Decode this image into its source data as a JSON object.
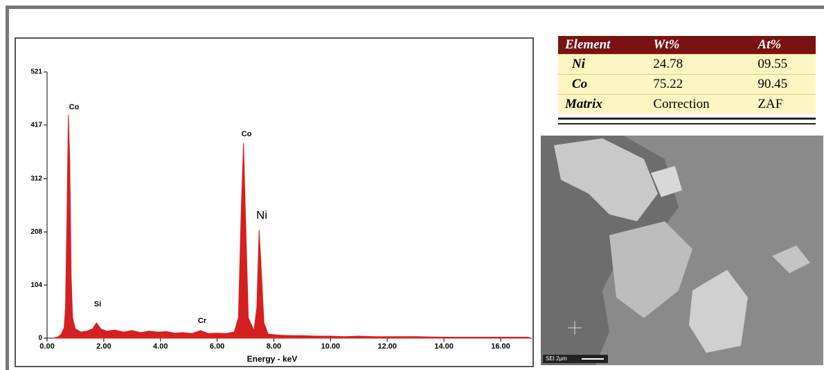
{
  "chart_data": {
    "type": "area",
    "x_label": "Energy - keV",
    "color": "#d42020",
    "x": [
      0.2,
      0.4,
      0.5,
      0.6,
      0.65,
      0.7,
      0.75,
      0.8,
      0.85,
      0.9,
      1.0,
      1.2,
      1.4,
      1.6,
      1.74,
      1.9,
      2.1,
      2.4,
      2.7,
      3.0,
      3.3,
      3.6,
      3.9,
      4.2,
      4.5,
      4.8,
      5.1,
      5.41,
      5.7,
      6.0,
      6.3,
      6.6,
      6.75,
      6.85,
      6.93,
      7.0,
      7.1,
      7.3,
      7.4,
      7.48,
      7.55,
      7.65,
      7.8,
      8.2,
      8.6,
      9.0,
      9.5,
      10.0,
      10.5,
      11.0,
      11.5,
      12.0,
      13.0,
      14.0,
      15.0,
      16.0,
      17.0
    ],
    "values": [
      0,
      3,
      8,
      20,
      60,
      240,
      437,
      350,
      120,
      40,
      18,
      12,
      14,
      18,
      30,
      18,
      14,
      16,
      12,
      15,
      11,
      14,
      12,
      13,
      10,
      11,
      9,
      15,
      9,
      10,
      9,
      12,
      40,
      250,
      382,
      240,
      40,
      15,
      60,
      212,
      140,
      30,
      8,
      6,
      5,
      5,
      4,
      4,
      3,
      4,
      3,
      3,
      3,
      2,
      2,
      2,
      2
    ],
    "annotations": [
      "Co",
      "Si",
      "Cr",
      "Co",
      "Ni"
    ],
    "xlim": [
      0,
      17.1
    ],
    "ylim": [
      0,
      521
    ],
    "xticks": [
      {
        "value": 0,
        "label": "0.00"
      },
      {
        "value": 2,
        "label": "2.00"
      },
      {
        "value": 4,
        "label": "4.00"
      },
      {
        "value": 6,
        "label": "6.00"
      },
      {
        "value": 8,
        "label": "8.00"
      },
      {
        "value": 10,
        "label": "10.00"
      },
      {
        "value": 12,
        "label": "12.00"
      },
      {
        "value": 14,
        "label": "14.00"
      },
      {
        "value": 16,
        "label": "16.00"
      }
    ],
    "yticks": [
      0,
      104,
      208,
      312,
      417,
      521
    ]
  },
  "table": {
    "header": [
      "Element",
      "Wt%",
      "At%"
    ],
    "rows": [
      [
        "Ni",
        "24.78",
        "09.55"
      ],
      [
        "Co",
        "75.22",
        "90.45"
      ],
      [
        "Matrix",
        "Correction",
        "ZAF"
      ]
    ]
  },
  "image": {
    "scale_label": "SEI 2μm"
  }
}
